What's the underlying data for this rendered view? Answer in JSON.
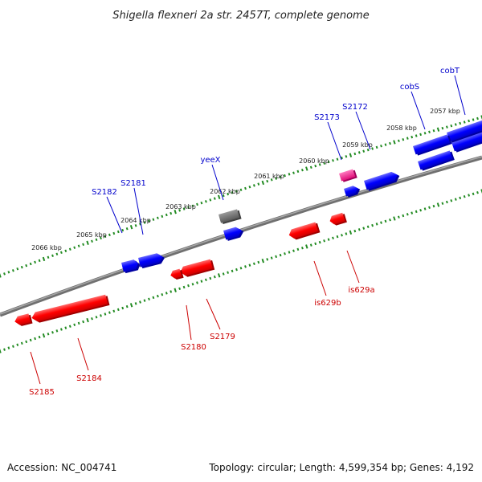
{
  "title": "Shigella flexneri 2a str. 2457T, complete genome",
  "footer": {
    "accession": "Accession: NC_004741",
    "summary": "Topology: circular; Length: 4,599,354 bp; Genes: 4,192"
  },
  "colors": {
    "forward": "#0000ff",
    "reverse": "#ff0000",
    "backbone": "#808080",
    "ticks": "#228b22",
    "label_forward": "#0000cc",
    "label_reverse": "#cc0000",
    "gray_feature": "#707070",
    "pink_feature": "#ff1493"
  },
  "ruler": [
    {
      "label": "2057 kbp",
      "kbp": 2057
    },
    {
      "label": "2058 kbp",
      "kbp": 2058
    },
    {
      "label": "2059 kbp",
      "kbp": 2059
    },
    {
      "label": "2060 kbp",
      "kbp": 2060
    },
    {
      "label": "2061 kbp",
      "kbp": 2061
    },
    {
      "label": "2062 kbp",
      "kbp": 2062
    },
    {
      "label": "2063 kbp",
      "kbp": 2063
    },
    {
      "label": "2064 kbp",
      "kbp": 2064
    },
    {
      "label": "2065 kbp",
      "kbp": 2065
    },
    {
      "label": "2066 kbp",
      "kbp": 2066
    }
  ],
  "genes": [
    {
      "name": "cobT",
      "strand": "forward"
    },
    {
      "name": "cobS",
      "strand": "forward"
    },
    {
      "name": "S2172",
      "strand": "forward"
    },
    {
      "name": "S2173",
      "strand": "forward"
    },
    {
      "name": "yeeX",
      "strand": "forward"
    },
    {
      "name": "S2181",
      "strand": "forward"
    },
    {
      "name": "S2182",
      "strand": "forward"
    },
    {
      "name": "is629a",
      "strand": "reverse"
    },
    {
      "name": "is629b",
      "strand": "reverse"
    },
    {
      "name": "S2179",
      "strand": "reverse"
    },
    {
      "name": "S2180",
      "strand": "reverse"
    },
    {
      "name": "S2184",
      "strand": "reverse"
    },
    {
      "name": "S2185",
      "strand": "reverse"
    }
  ]
}
